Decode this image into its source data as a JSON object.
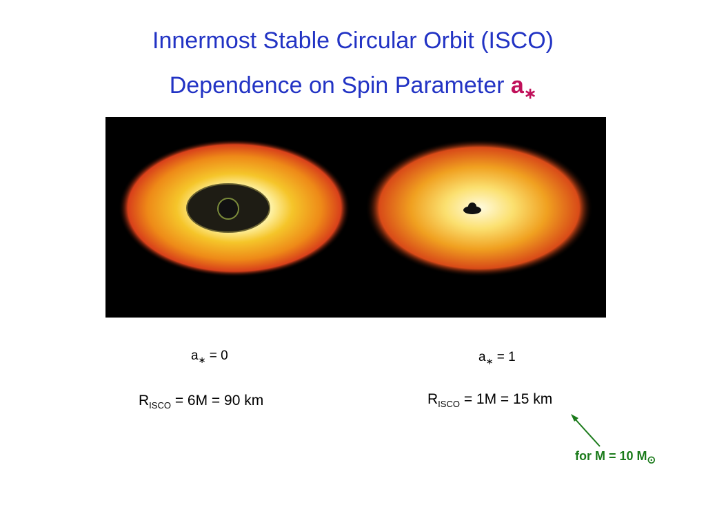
{
  "title": {
    "line1": "Innermost Stable Circular Orbit (ISCO)",
    "line2": "Dependence on Spin Parameter",
    "symbol": "a",
    "symbol_sub": "∗"
  },
  "panels": [
    {
      "spin": {
        "symbol": "a",
        "sub": "∗",
        "rest": "= 0"
      },
      "radius": {
        "symbol": "R",
        "sub": "ISCO",
        "rest": "= 6M = 90 km"
      }
    },
    {
      "spin": {
        "symbol": "a",
        "sub": "∗",
        "rest": "= 1"
      },
      "radius": {
        "symbol": "R",
        "sub": "ISCO",
        "rest": "= 1M = 15 km"
      }
    }
  ],
  "note": {
    "text": "for M = 10 M",
    "sub": "⊙"
  }
}
